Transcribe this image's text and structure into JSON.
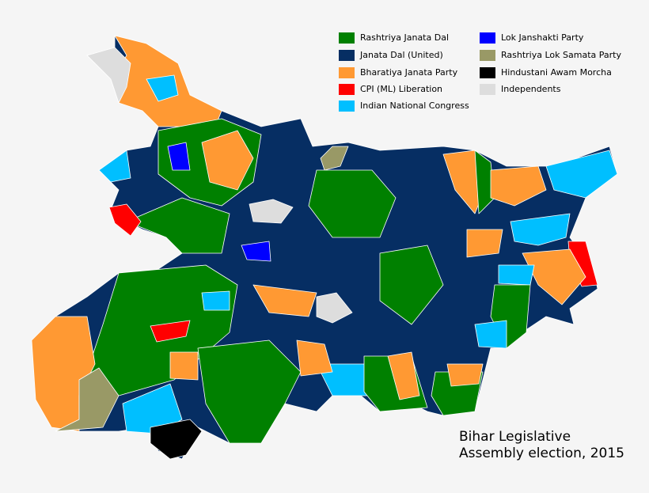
{
  "legend": {
    "items": [
      {
        "name": "Rashtriya Janata Dal",
        "color": "#008000"
      },
      {
        "name": "Janata Dal (United)",
        "color": "#062e63"
      },
      {
        "name": "Bharatiya Janata Party",
        "color": "#ff9933"
      },
      {
        "name": "CPI (ML) Liberation",
        "color": "#ff0000"
      },
      {
        "name": "Indian National Congress",
        "color": "#00bfff"
      },
      {
        "name": "Lok Janshakti Party",
        "color": "#0000ff"
      },
      {
        "name": "Rashtriya Lok Samata Party",
        "color": "#999966"
      },
      {
        "name": "Hindustani Awam Morcha",
        "color": "#000000"
      },
      {
        "name": "Independents",
        "color": "#dddddd"
      }
    ]
  },
  "caption": {
    "line1": "Bihar Legislative",
    "line2": "Assembly election, 2015"
  }
}
